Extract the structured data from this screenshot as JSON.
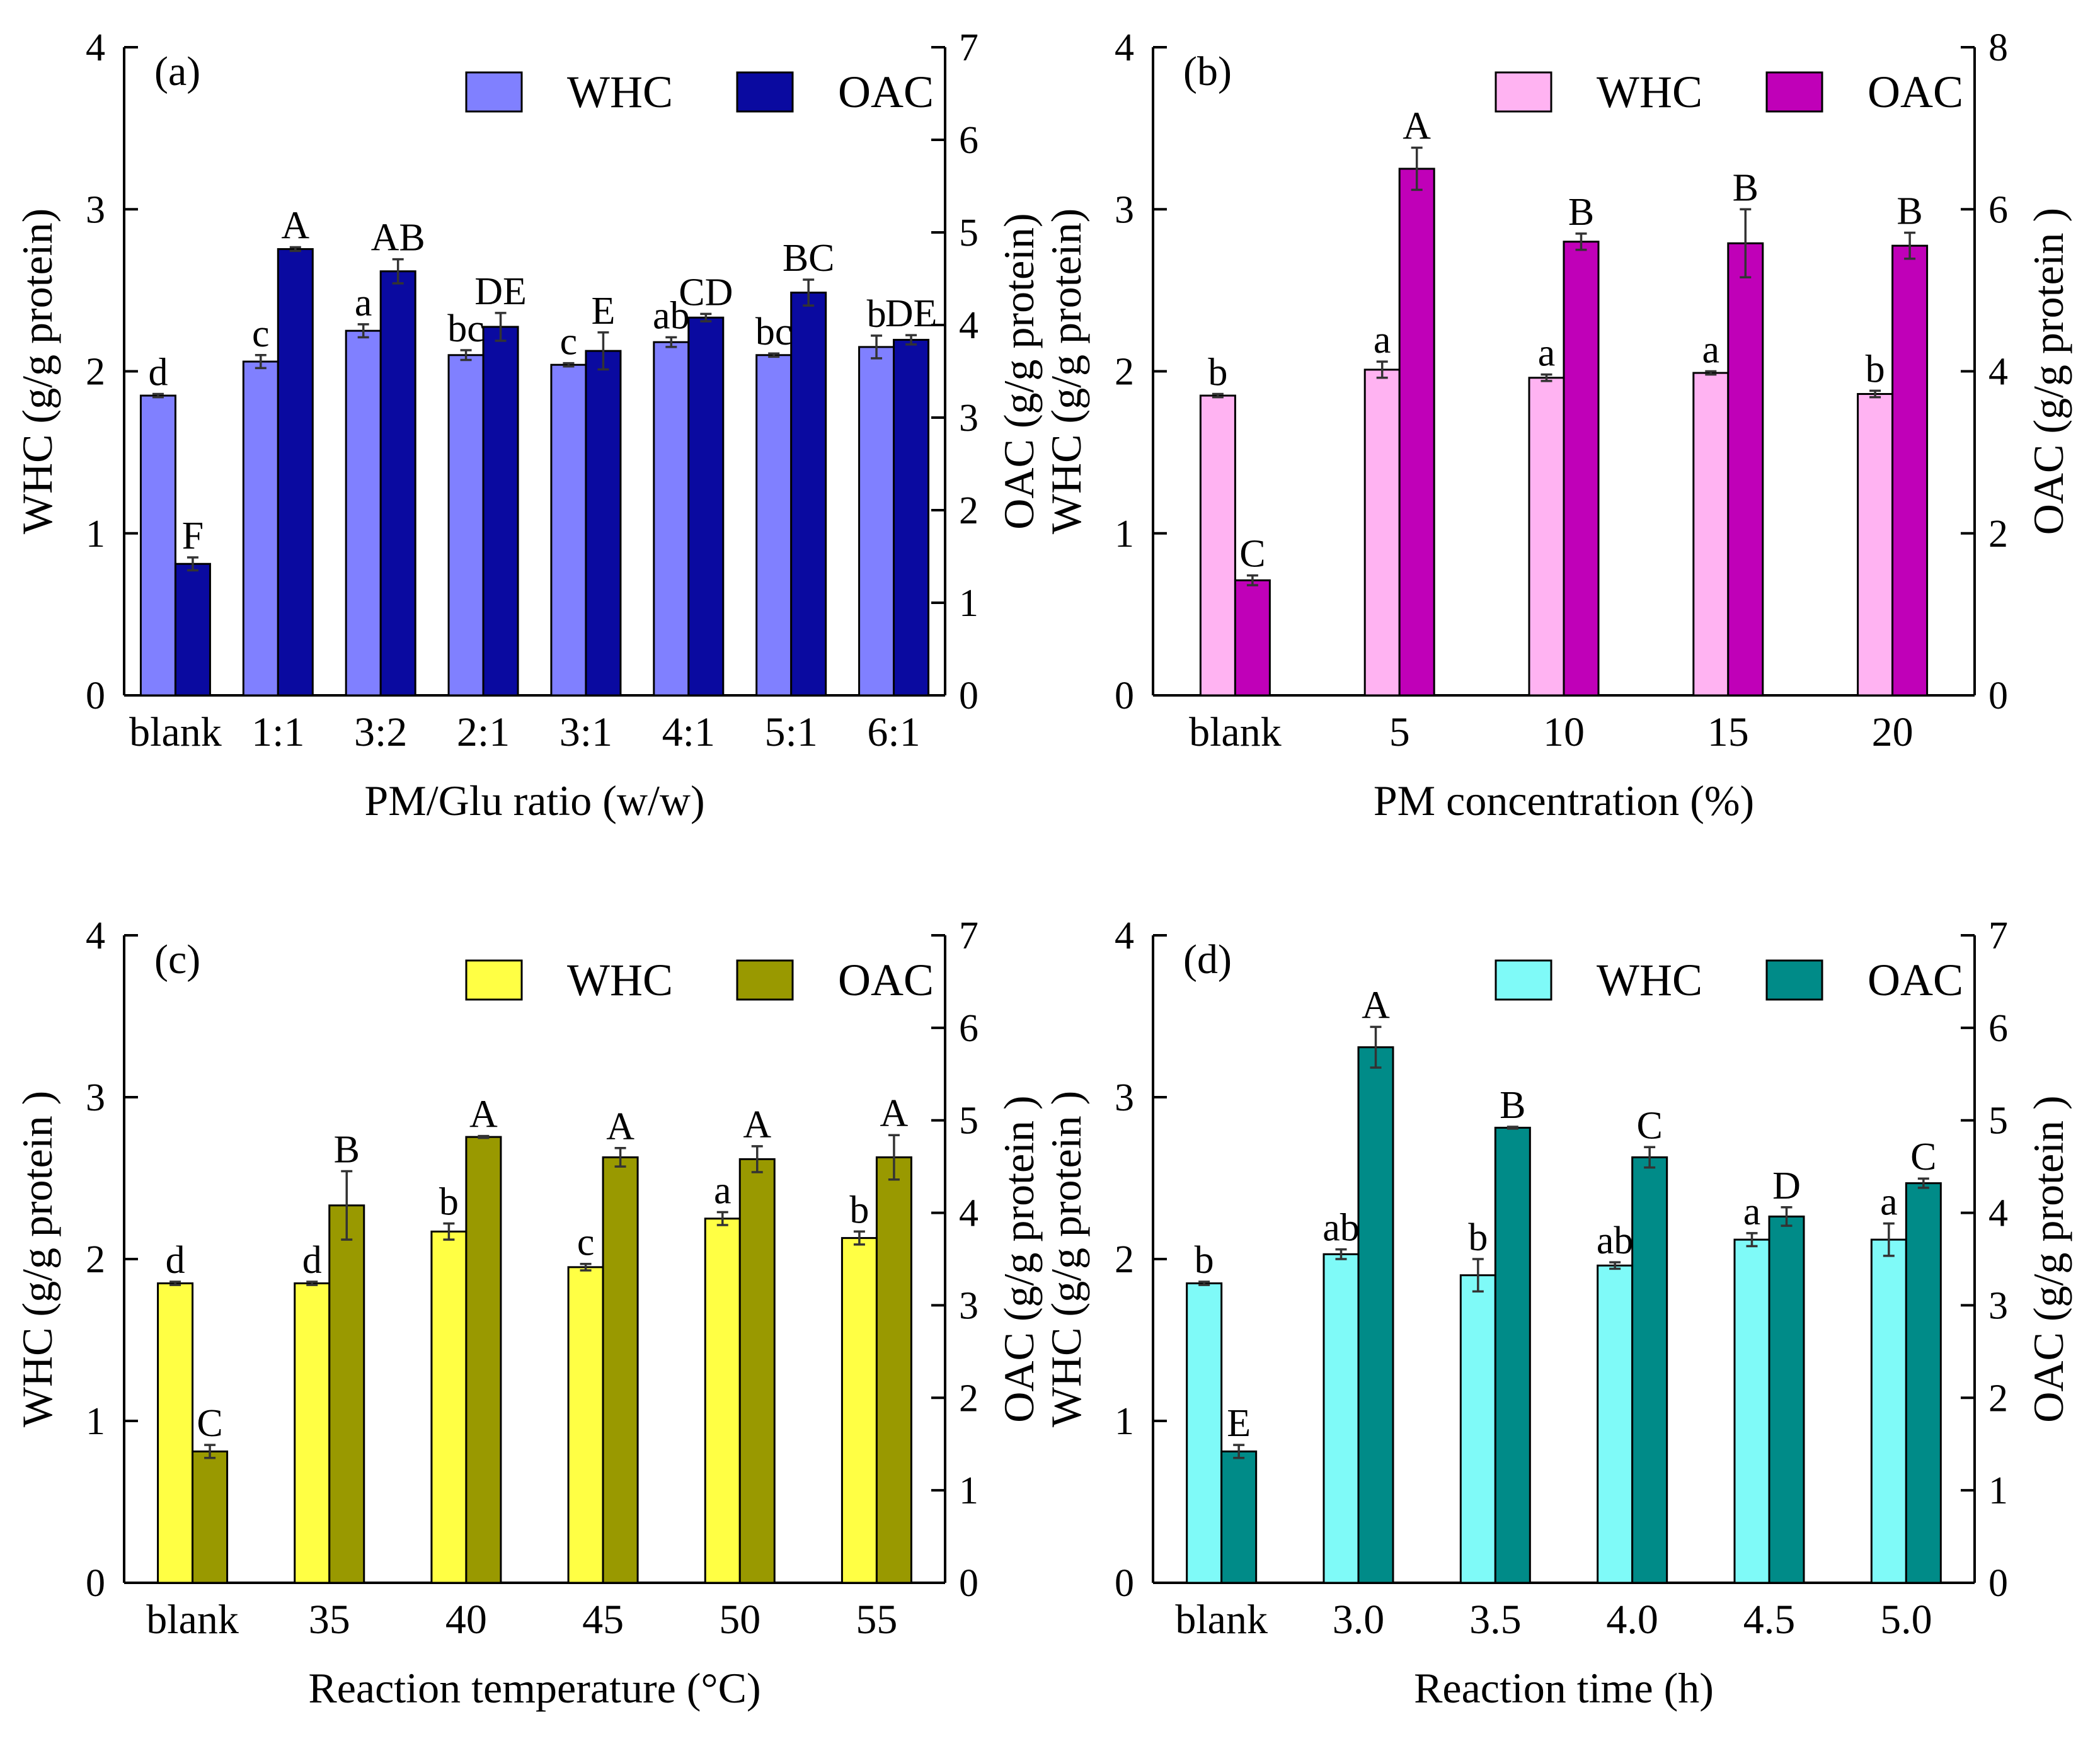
{
  "chart_data": [
    {
      "type": "bar",
      "panel_label": "(a)",
      "categories": [
        "blank",
        "1:1",
        "3:2",
        "2:1",
        "3:1",
        "4:1",
        "5:1",
        "6:1"
      ],
      "xlabel": "PM/Glu ratio (w/w)",
      "ylabel_left": "WHC (g/g protein)",
      "ylabel_right": "OAC (g/g protein)",
      "ylim_left": [
        0,
        4
      ],
      "ylim_right": [
        0,
        7
      ],
      "yticks_left": [
        0,
        1,
        2,
        3,
        4
      ],
      "yticks_right": [
        0,
        1,
        2,
        3,
        4,
        5,
        6,
        7
      ],
      "legend_position": "top-right",
      "series": [
        {
          "name": "WHC",
          "axis": "left",
          "color": "#8080ff",
          "values": [
            1.85,
            2.06,
            2.25,
            2.1,
            2.04,
            2.18,
            2.1,
            2.15
          ],
          "errors": [
            0.01,
            0.04,
            0.04,
            0.03,
            0.01,
            0.03,
            0.01,
            0.07
          ],
          "labels": [
            "d",
            "c",
            "a",
            "bc",
            "c",
            "ab",
            "bc",
            "b"
          ]
        },
        {
          "name": "OAC",
          "axis": "right",
          "color": "#0a0aa0",
          "values": [
            1.42,
            4.82,
            4.58,
            3.98,
            3.72,
            4.08,
            4.35,
            3.84
          ],
          "errors": [
            0.07,
            0.02,
            0.13,
            0.15,
            0.2,
            0.04,
            0.14,
            0.05
          ],
          "labels": [
            "F",
            "A",
            "AB",
            "DE",
            "E",
            "CD",
            "BC",
            "DE"
          ]
        }
      ]
    },
    {
      "type": "bar",
      "panel_label": "(b)",
      "categories": [
        "blank",
        "5",
        "10",
        "15",
        "20"
      ],
      "xlabel": "PM concentration (%)",
      "ylabel_left": "WHC (g/g protein)",
      "ylabel_right": "OAC (g/g protein )",
      "ylim_left": [
        0,
        4
      ],
      "ylim_right": [
        0,
        8
      ],
      "yticks_left": [
        0,
        1,
        2,
        3,
        4
      ],
      "yticks_right": [
        0,
        2,
        4,
        6,
        8
      ],
      "legend_position": "top-right",
      "series": [
        {
          "name": "WHC",
          "axis": "left",
          "color": "#ffb3f2",
          "values": [
            1.85,
            2.01,
            1.96,
            1.99,
            1.86
          ],
          "errors": [
            0.01,
            0.05,
            0.02,
            0.01,
            0.02
          ],
          "labels": [
            "b",
            "a",
            "a",
            "a",
            "b"
          ]
        },
        {
          "name": "OAC",
          "axis": "right",
          "color": "#c000b8",
          "values": [
            1.42,
            6.5,
            5.6,
            5.58,
            5.55
          ],
          "errors": [
            0.06,
            0.26,
            0.1,
            0.42,
            0.16
          ],
          "labels": [
            "C",
            "A",
            "B",
            "B",
            "B"
          ]
        }
      ]
    },
    {
      "type": "bar",
      "panel_label": "(c)",
      "categories": [
        "blank",
        "35",
        "40",
        "45",
        "50",
        "55"
      ],
      "xlabel": "Reaction temperature (°C)",
      "ylabel_left": "WHC (g/g protein )",
      "ylabel_right": "OAC (g/g protein )",
      "ylim_left": [
        0,
        4
      ],
      "ylim_right": [
        0,
        7
      ],
      "yticks_left": [
        0,
        1,
        2,
        3,
        4
      ],
      "yticks_right": [
        0,
        1,
        2,
        3,
        4,
        5,
        6,
        7
      ],
      "legend_position": "top-right",
      "series": [
        {
          "name": "WHC",
          "axis": "left",
          "color": "#ffff44",
          "values": [
            1.85,
            1.85,
            2.17,
            1.95,
            2.25,
            2.13
          ],
          "errors": [
            0.01,
            0.01,
            0.05,
            0.02,
            0.04,
            0.04
          ],
          "labels": [
            "d",
            "d",
            "b",
            "c",
            "a",
            "b"
          ]
        },
        {
          "name": "OAC",
          "axis": "right",
          "color": "#999900",
          "values": [
            1.42,
            4.08,
            4.82,
            4.6,
            4.58,
            4.6
          ],
          "errors": [
            0.07,
            0.37,
            0.01,
            0.1,
            0.14,
            0.24
          ],
          "labels": [
            "C",
            "B",
            "A",
            "A",
            "A",
            "A"
          ]
        }
      ]
    },
    {
      "type": "bar",
      "panel_label": "(d)",
      "categories": [
        "blank",
        "3.0",
        "3.5",
        "4.0",
        "4.5",
        "5.0"
      ],
      "xlabel": "Reaction time (h)",
      "ylabel_left": "WHC (g/g protein )",
      "ylabel_right": "OAC (g/g protein )",
      "ylim_left": [
        0,
        4
      ],
      "ylim_right": [
        0,
        7
      ],
      "yticks_left": [
        0,
        1,
        2,
        3,
        4
      ],
      "yticks_right": [
        0,
        1,
        2,
        3,
        4,
        5,
        6,
        7
      ],
      "legend_position": "top-right",
      "series": [
        {
          "name": "WHC",
          "axis": "left",
          "color": "#7ffaf8",
          "values": [
            1.85,
            2.03,
            1.9,
            1.96,
            2.12,
            2.12
          ],
          "errors": [
            0.01,
            0.03,
            0.1,
            0.02,
            0.04,
            0.1
          ],
          "labels": [
            "b",
            "ab",
            "b",
            "ab",
            "a",
            "a"
          ]
        },
        {
          "name": "OAC",
          "axis": "right",
          "color": "#008b88",
          "values": [
            1.42,
            5.79,
            4.92,
            4.6,
            3.96,
            4.32
          ],
          "errors": [
            0.07,
            0.22,
            0.01,
            0.11,
            0.1,
            0.05
          ],
          "labels": [
            "E",
            "A",
            "B",
            "C",
            "D",
            "C"
          ]
        }
      ]
    }
  ]
}
